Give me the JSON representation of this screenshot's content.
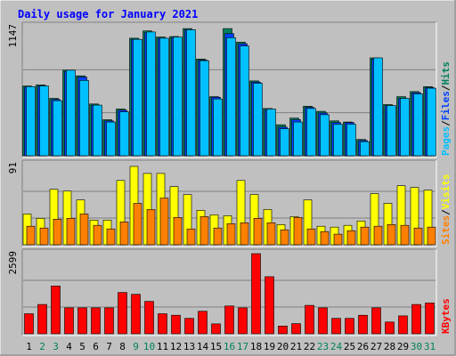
{
  "chart_data": {
    "type": "bar",
    "title": "Daily usage for January 2021",
    "categories": [
      "1",
      "2",
      "3",
      "4",
      "5",
      "6",
      "7",
      "8",
      "9",
      "10",
      "11",
      "12",
      "13",
      "14",
      "15",
      "16",
      "17",
      "18",
      "19",
      "20",
      "21",
      "22",
      "23",
      "24",
      "25",
      "26",
      "27",
      "28",
      "29",
      "30",
      "31"
    ],
    "weekend_days": [
      "2",
      "3",
      "9",
      "10",
      "16",
      "17",
      "23",
      "24",
      "30",
      "31"
    ],
    "colors": {
      "hits": "#00805c",
      "files": "#0040ff",
      "pages": "#00c0ff",
      "visits": "#ffff00",
      "sites": "#ff8000",
      "kbytes": "#ff0000",
      "title": "#0000ff",
      "weekend_label": "#00805c",
      "weekday_label": "#000000",
      "panel_bg": "#c0c0c0"
    },
    "panels": [
      {
        "id": "hits-files-pages",
        "scale_label": "1147",
        "ymax": 1147,
        "legend": [
          {
            "text": "Pages",
            "series": "pages"
          },
          {
            "text": "/",
            "series": "separator"
          },
          {
            "text": "Files",
            "series": "files"
          },
          {
            "text": "/",
            "series": "separator"
          },
          {
            "text": "Hits",
            "series": "hits"
          }
        ],
        "series": [
          {
            "key": "hits",
            "values": [
              620,
              630,
              510,
              760,
              710,
              460,
              320,
              415,
              1045,
              1110,
              1055,
              1060,
              1130,
              860,
              525,
              1130,
              1010,
              665,
              420,
              275,
              335,
              440,
              395,
              310,
              300,
              145,
              870,
              455,
              525,
              570,
              615
            ]
          },
          {
            "key": "files",
            "values": [
              610,
              620,
              500,
              750,
              700,
              450,
              310,
              405,
              1035,
              1095,
              1045,
              1050,
              1120,
              850,
              520,
              1085,
              995,
              655,
              410,
              255,
              320,
              430,
              380,
              295,
              295,
              135,
              860,
              445,
              510,
              560,
              605
            ]
          },
          {
            "key": "pages",
            "values": [
              615,
              620,
              490,
              760,
              670,
              450,
              300,
              390,
              1035,
              1100,
              1045,
              1055,
              1120,
              845,
              505,
              1050,
              975,
              645,
              415,
              240,
              300,
              420,
              365,
              280,
              280,
              125,
              870,
              445,
              510,
              550,
              600
            ]
          }
        ]
      },
      {
        "id": "visits-sites",
        "scale_label": "91",
        "ymax": 91,
        "legend": [
          {
            "text": "Sites",
            "series": "sites"
          },
          {
            "text": "/",
            "series": "separator"
          },
          {
            "text": "Visits",
            "series": "visits"
          }
        ],
        "series": [
          {
            "key": "visits",
            "values": [
              35,
              30,
              63,
              61,
              51,
              28,
              28,
              73,
              89,
              81,
              81,
              66,
              57,
              39,
              34,
              33,
              73,
              57,
              40,
              23,
              32,
              51,
              21,
              20,
              22,
              27,
              58,
              47,
              67,
              65,
              62
            ]
          },
          {
            "key": "sites",
            "values": [
              21,
              19,
              29,
              30,
              35,
              22,
              18,
              26,
              47,
              40,
              53,
              31,
              18,
              32,
              19,
              24,
              25,
              30,
              25,
              17,
              31,
              18,
              15,
              12,
              16,
              20,
              21,
              23,
              22,
              19,
              20
            ]
          }
        ]
      },
      {
        "id": "kbytes",
        "scale_label": "2599",
        "ymax": 2599,
        "legend": [
          {
            "text": "KBytes",
            "series": "kbytes"
          }
        ],
        "series": [
          {
            "key": "kbytes",
            "values": [
              650,
              950,
              1550,
              840,
              840,
              840,
              840,
              1340,
              1280,
              1050,
              650,
              600,
              500,
              730,
              320,
              900,
              840,
              2600,
              1850,
              250,
              330,
              920,
              840,
              500,
              500,
              600,
              840,
              380,
              580,
              950,
              1000
            ]
          }
        ]
      }
    ]
  }
}
